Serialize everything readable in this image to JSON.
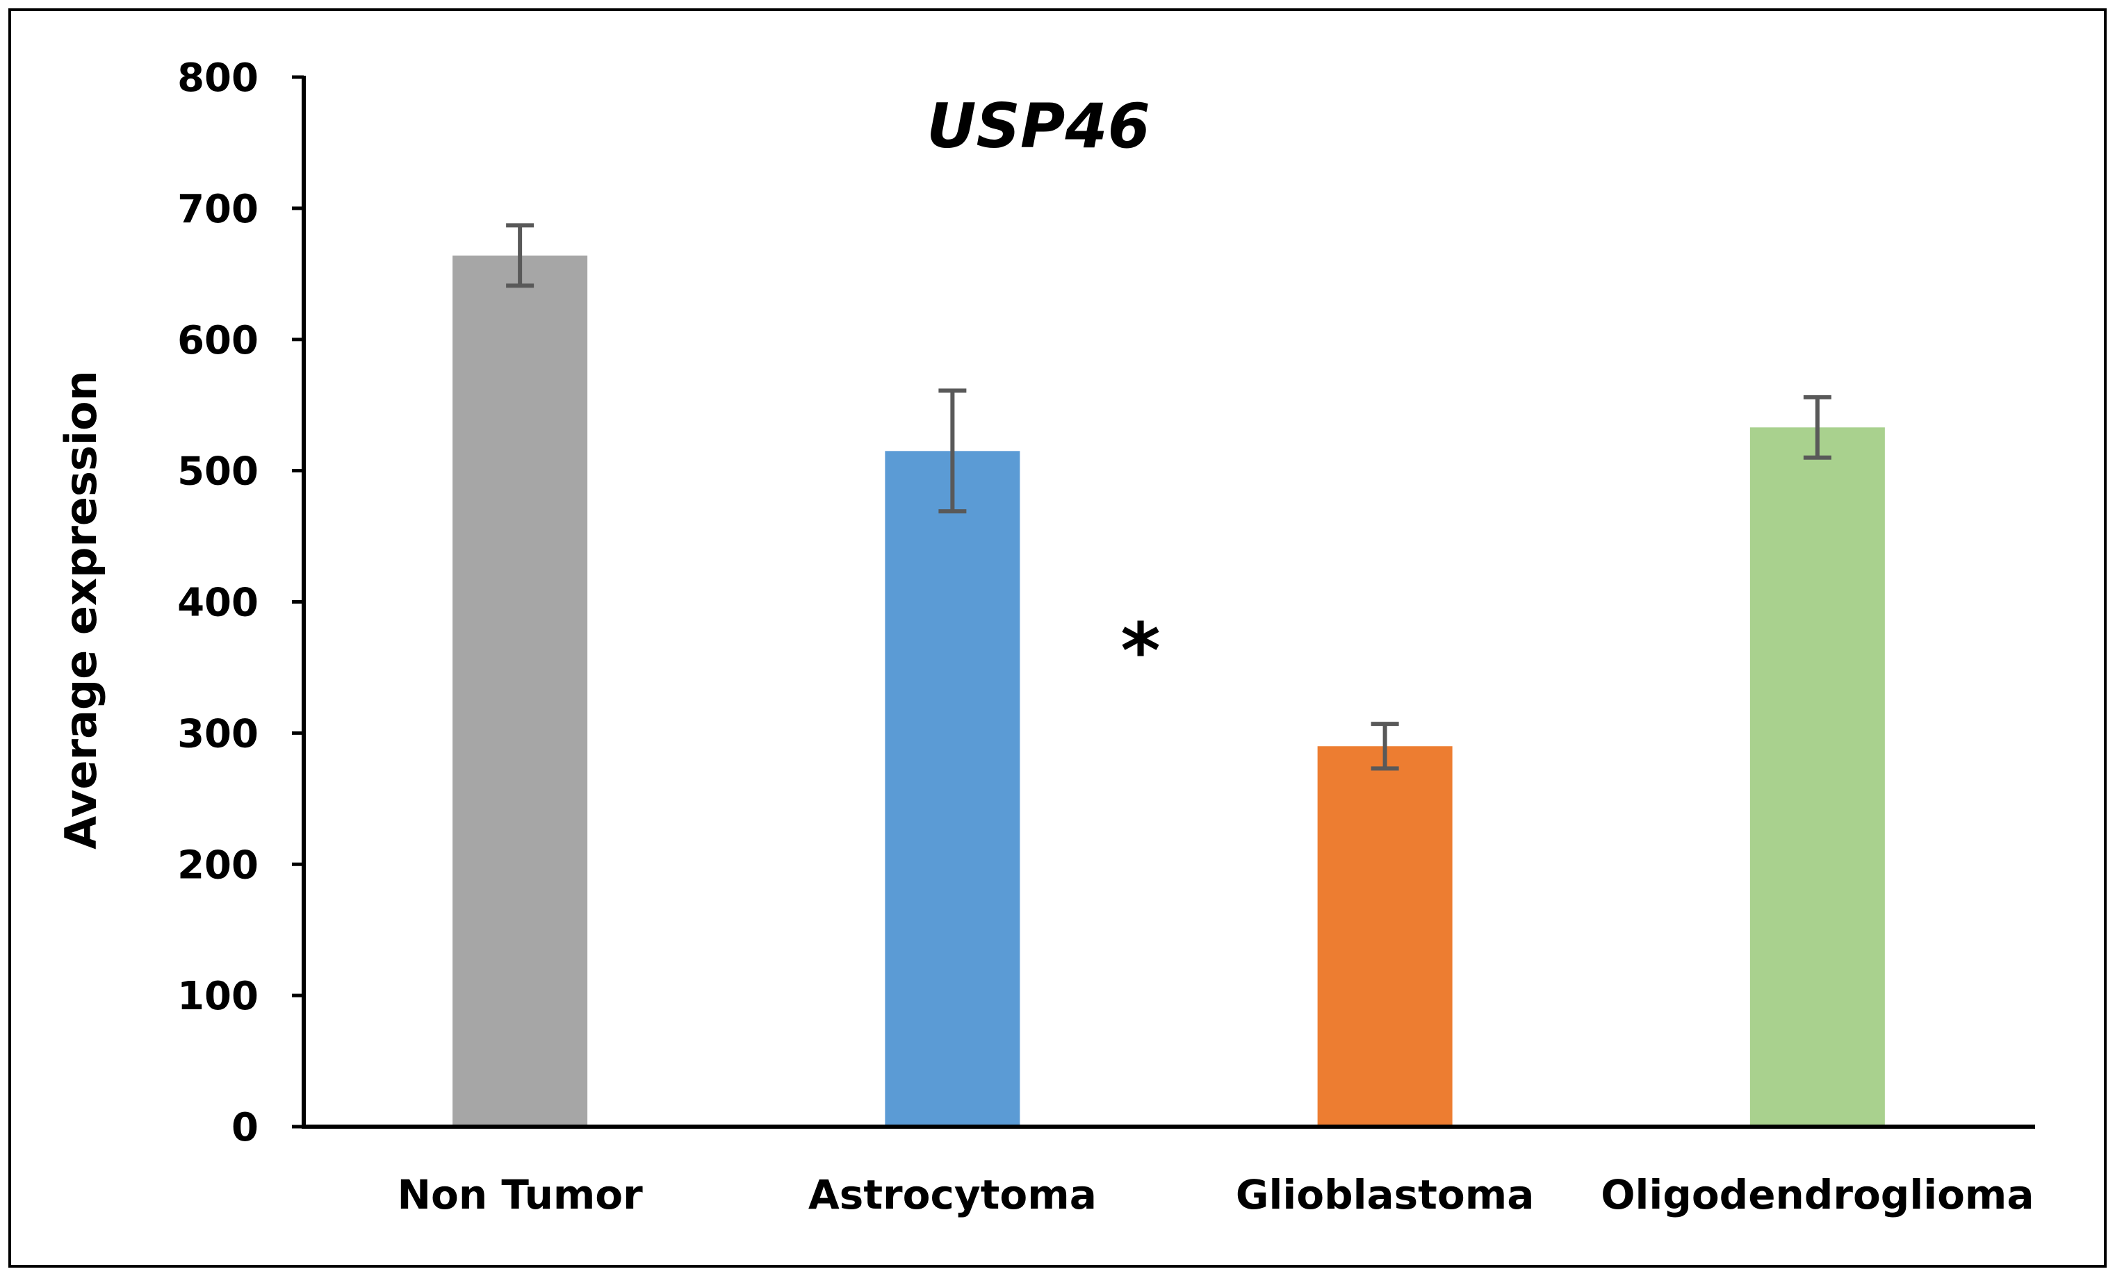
{
  "chart_data": {
    "type": "bar",
    "title": "USP46",
    "xlabel": "",
    "ylabel": "Average expression",
    "ylim": [
      0,
      800
    ],
    "yticks": [
      "0",
      "100",
      "200",
      "300",
      "400",
      "500",
      "600",
      "700",
      "800"
    ],
    "grid": false,
    "categories": [
      "Non Tumor",
      "Astrocytoma",
      "Glioblastoma",
      "Oligodendroglioma"
    ],
    "values": [
      664,
      515,
      290,
      533
    ],
    "errors": [
      23,
      46,
      17,
      23
    ],
    "colors": [
      "#a6a6a6",
      "#5b9bd5",
      "#ed7d31",
      "#a9d18e"
    ],
    "error_bar_color": "#595959",
    "annotations": [
      {
        "text": "*",
        "between": [
          "Astrocytoma",
          "Glioblastoma"
        ]
      }
    ]
  }
}
